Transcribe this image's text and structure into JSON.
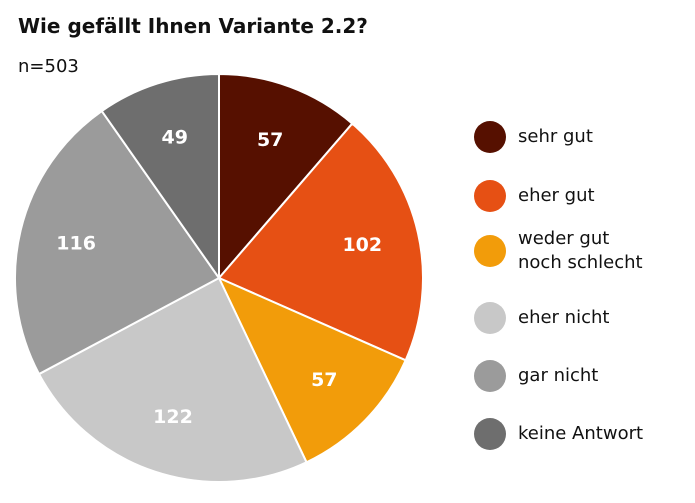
{
  "chart_data": {
    "type": "pie",
    "title": "Wie gefällt Ihnen Variante 2.2?",
    "subtitle": "n=503",
    "categories": [
      "sehr gut",
      "eher gut",
      "weder gut noch schlecht",
      "eher nicht",
      "gar nicht",
      "keine Antwort"
    ],
    "values": [
      57,
      102,
      57,
      122,
      116,
      49
    ],
    "colors": [
      "#561000",
      "#e65014",
      "#f29c0a",
      "#c8c8c8",
      "#9b9b9b",
      "#6e6e6e"
    ]
  }
}
